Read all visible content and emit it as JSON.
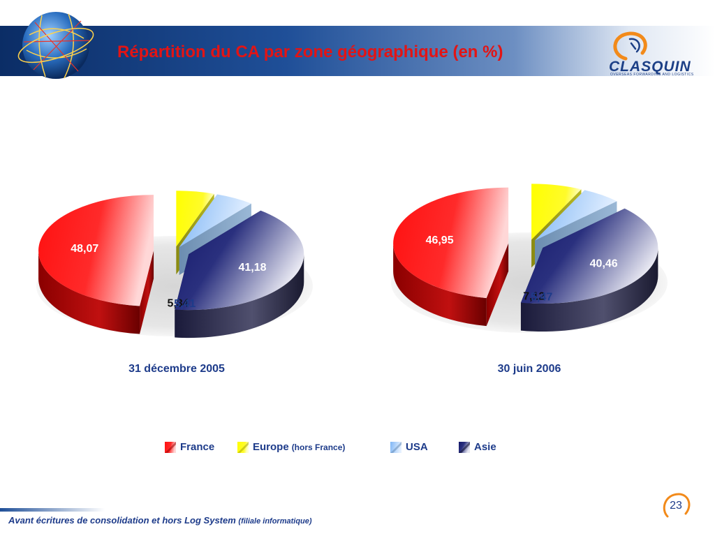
{
  "slide": {
    "title": "Répartition du CA par zone géographique (en %)",
    "logo_text": "CLASQUIN",
    "logo_subtext": "OVERSEAS FORWARDING AND LOGISTICS",
    "footnote_main": "Avant écritures de consolidation et hors Log System",
    "footnote_sub": "(filiale informatique)",
    "page_number": "23"
  },
  "colors": {
    "France": "#ff1a1a",
    "Europe": "#ffff00",
    "USA": "#a8d0ff",
    "Asie": "#1a1f6e",
    "header": "#0b2d66"
  },
  "legend": [
    {
      "name": "France",
      "sub": ""
    },
    {
      "name": "Europe",
      "sub": "(hors France)"
    },
    {
      "name": "USA",
      "sub": ""
    },
    {
      "name": "Asie",
      "sub": ""
    }
  ],
  "chart_data": [
    {
      "type": "pie",
      "title": "31 décembre 2005",
      "categories": [
        "France",
        "Europe",
        "USA",
        "Asie"
      ],
      "values": [
        48.07,
        5.34,
        5.41,
        41.18
      ],
      "labels": [
        "48,07",
        "5,34",
        "5,41",
        "41,18"
      ],
      "legend_position": "bottom"
    },
    {
      "type": "pie",
      "title": "30 juin 2006",
      "categories": [
        "France",
        "Europe",
        "USA",
        "Asie"
      ],
      "values": [
        46.95,
        7.12,
        5.47,
        40.46
      ],
      "labels": [
        "46,95",
        "7,12",
        "5,47",
        "40,46"
      ],
      "legend_position": "bottom"
    }
  ]
}
